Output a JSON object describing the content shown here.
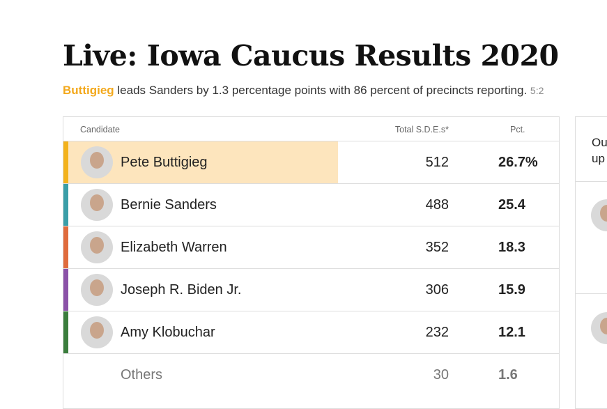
{
  "header": {
    "title": "Live: Iowa Caucus Results 2020",
    "leader": "Buttigieg",
    "summary": "leads Sanders by 1.3 percentage points with 86 percent of precincts reporting.",
    "time": "5:2"
  },
  "table": {
    "columns": [
      "Candidate",
      "Total S.D.E.s*",
      "Pct."
    ],
    "rows": [
      {
        "name": "Pete Buttigieg",
        "sde": "512",
        "pct": "26.7%",
        "color": "#f3b21b",
        "highlight": true
      },
      {
        "name": "Bernie Sanders",
        "sde": "488",
        "pct": "25.4",
        "color": "#3a9ea8"
      },
      {
        "name": "Elizabeth Warren",
        "sde": "352",
        "pct": "18.3",
        "color": "#e06b3c"
      },
      {
        "name": "Joseph R. Biden Jr.",
        "sde": "306",
        "pct": "15.9",
        "color": "#8b52a8"
      },
      {
        "name": "Amy Klobuchar",
        "sde": "232",
        "pct": "12.1",
        "color": "#3a7d3c"
      },
      {
        "name": "Others",
        "sde": "30",
        "pct": "1.6",
        "others": true
      }
    ]
  },
  "sidebar": {
    "lines": [
      "Ou",
      "up"
    ]
  }
}
